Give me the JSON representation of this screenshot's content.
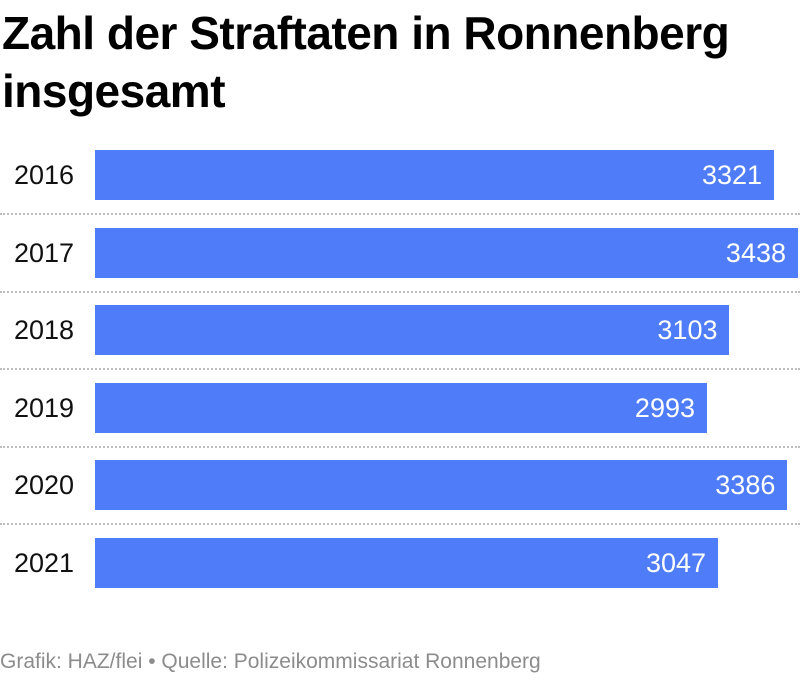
{
  "chart_data": {
    "type": "bar",
    "orientation": "horizontal",
    "title": "Zahl der Straftaten in Ronnenberg insgesamt",
    "categories": [
      "2016",
      "2017",
      "2018",
      "2019",
      "2020",
      "2021"
    ],
    "values": [
      3321,
      3438,
      3103,
      2993,
      3386,
      3047
    ],
    "value_labels": [
      "3321",
      "3438",
      "3103",
      "2993",
      "3386",
      "3047"
    ],
    "bar_color": "#4f7df9",
    "xlim": [
      0,
      3438
    ],
    "grid": false,
    "legend": "none"
  },
  "footer": {
    "source": "Grafik: HAZ/flei • Quelle: Polizeikommissariat Ronnenberg"
  }
}
